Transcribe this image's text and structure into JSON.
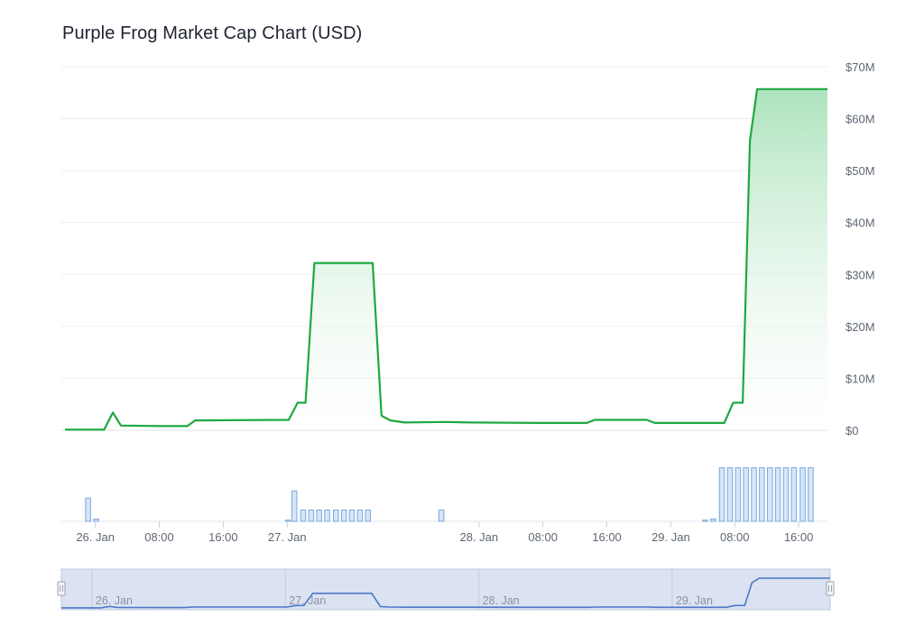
{
  "chart_data": {
    "type": "area",
    "title": "Purple Frog Market Cap Chart (USD)",
    "currency": "USD",
    "y_axis": {
      "ticks": [
        "$0",
        "$10M",
        "$20M",
        "$30M",
        "$40M",
        "$50M",
        "$60M",
        "$70M"
      ],
      "tick_values": [
        0,
        10,
        20,
        30,
        40,
        50,
        60,
        70
      ],
      "unit": "M USD",
      "ylim": [
        0,
        70
      ],
      "position": "right",
      "grid": true
    },
    "x_axis": {
      "labels": [
        {
          "text": "26. Jan",
          "hour": 0
        },
        {
          "text": "08:00",
          "hour": 8
        },
        {
          "text": "16:00",
          "hour": 16
        },
        {
          "text": "27. Jan",
          "hour": 24
        },
        {
          "text": "28. Jan",
          "hour": 48
        },
        {
          "text": "08:00",
          "hour": 56
        },
        {
          "text": "16:00",
          "hour": 64
        },
        {
          "text": "29. Jan",
          "hour": 72
        },
        {
          "text": "08:00",
          "hour": 80
        },
        {
          "text": "16:00",
          "hour": 88
        }
      ],
      "range_hours": [
        -3.8,
        91.6
      ]
    },
    "series": [
      {
        "color": "#1fa841",
        "fill_top": "#b3e5c2",
        "points": [
          [
            -3.8,
            0.1
          ],
          [
            1.1,
            0.1
          ],
          [
            2.2,
            3.4
          ],
          [
            3.2,
            0.9
          ],
          [
            8.4,
            0.8
          ],
          [
            11.5,
            0.8
          ],
          [
            12.5,
            1.9
          ],
          [
            24.2,
            2.0
          ],
          [
            25.3,
            5.3
          ],
          [
            26.3,
            5.3
          ],
          [
            27.4,
            32.2
          ],
          [
            34.7,
            32.2
          ],
          [
            35.8,
            2.8
          ],
          [
            36.9,
            1.9
          ],
          [
            38.7,
            1.5
          ],
          [
            43.9,
            1.6
          ],
          [
            46.8,
            1.5
          ],
          [
            55.1,
            1.4
          ],
          [
            61.5,
            1.4
          ],
          [
            62.5,
            2.0
          ],
          [
            69.0,
            2.0
          ],
          [
            70.0,
            1.4
          ],
          [
            78.7,
            1.4
          ],
          [
            79.8,
            5.3
          ],
          [
            81.0,
            5.3
          ],
          [
            81.9,
            55.8
          ],
          [
            82.8,
            65.7
          ],
          [
            91.6,
            65.7
          ]
        ]
      }
    ],
    "volume": {
      "color": "#d6e6f8",
      "stroke": "#7aa8dc",
      "bars": [
        [
          -0.9,
          0.39
        ],
        [
          0.1,
          0.04
        ],
        [
          24.1,
          0.02
        ],
        [
          24.9,
          0.51
        ],
        [
          26.0,
          0.19
        ],
        [
          27.0,
          0.19
        ],
        [
          28.0,
          0.19
        ],
        [
          29.0,
          0.19
        ],
        [
          30.1,
          0.19
        ],
        [
          31.1,
          0.19
        ],
        [
          32.1,
          0.19
        ],
        [
          33.1,
          0.19
        ],
        [
          34.1,
          0.19
        ],
        [
          43.3,
          0.19
        ],
        [
          76.3,
          0.02
        ],
        [
          77.3,
          0.04
        ],
        [
          78.4,
          0.9
        ],
        [
          79.4,
          0.9
        ],
        [
          80.4,
          0.9
        ],
        [
          81.4,
          0.9
        ],
        [
          82.4,
          0.9
        ],
        [
          83.4,
          0.9
        ],
        [
          84.4,
          0.9
        ],
        [
          85.4,
          0.9
        ],
        [
          86.4,
          0.9
        ],
        [
          87.4,
          0.9
        ],
        [
          88.5,
          0.9
        ],
        [
          89.5,
          0.9
        ]
      ]
    },
    "navigator": {
      "labels": [
        {
          "text": "26. Jan",
          "hour": 0
        },
        {
          "text": "27. Jan",
          "hour": 24
        },
        {
          "text": "28. Jan",
          "hour": 48
        },
        {
          "text": "29. Jan",
          "hour": 72
        }
      ],
      "line_color": "#4a78c8",
      "background": "#dbe2f1"
    }
  }
}
